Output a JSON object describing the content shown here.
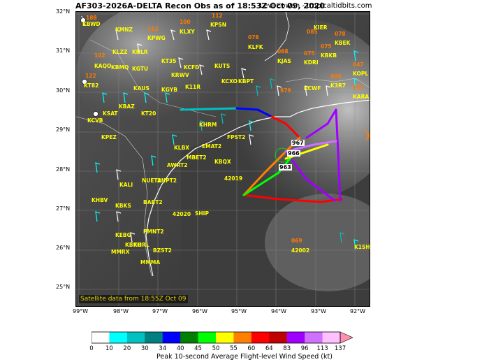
{
  "title": "AF303-2026A-DELTA Recon Obs as of 18:53Z Oct 09, 2020",
  "credit": "Levi Cowan - tropicaltidbits.com",
  "satellite_note": "Satellite data from 18:55Z Oct 09",
  "lat_labels": [
    "32°N",
    "31°N",
    "30°N",
    "29°N",
    "28°N",
    "27°N",
    "26°N",
    "25°N"
  ],
  "lon_labels": [
    "99°W",
    "98°W",
    "97°W",
    "96°W",
    "95°W",
    "94°W",
    "93°W",
    "92°W"
  ],
  "pressure_labels": [
    "967",
    "966",
    "963"
  ],
  "colorbar": {
    "title": "Peak 10-second Average Flight-level Wind Speed (kt)",
    "ticks": [
      "0",
      "10",
      "20",
      "30",
      "34",
      "40",
      "45",
      "50",
      "55",
      "60",
      "64",
      "83",
      "96",
      "113",
      "137"
    ],
    "colors": [
      "#ffffff",
      "#00ffff",
      "#00c0c0",
      "#008080",
      "#0000ff",
      "#008000",
      "#00ff00",
      "#ffff00",
      "#ff8000",
      "#ff0000",
      "#c00000",
      "#a000ff",
      "#d070ff",
      "#ffc0ff",
      "#ff90b0"
    ]
  },
  "stations": [
    {
      "id": "KBWD",
      "obs": "188",
      "color": "#ff7a00"
    },
    {
      "id": "KMNZ",
      "obs": "",
      "color": ""
    },
    {
      "id": "KPWG",
      "obs": "162",
      "color": "#ff7a00"
    },
    {
      "id": "KLXY",
      "obs": "100",
      "color": "#ff7a00"
    },
    {
      "id": "KPSN",
      "obs": "112",
      "color": "#ff7a00"
    },
    {
      "id": "KLFK",
      "obs": "078",
      "color": "#ff7a00"
    },
    {
      "id": "KJAS",
      "obs": "068",
      "color": "#ff7a00"
    },
    {
      "id": "KDRI",
      "obs": "075",
      "color": "#ff7a00"
    },
    {
      "id": "KBKB",
      "obs": "075",
      "color": "#ff7a00"
    },
    {
      "id": "KIER",
      "obs": "085",
      "color": "#ff7a00"
    },
    {
      "id": "KBEK",
      "obs": "078",
      "color": "#ff7a00"
    },
    {
      "id": "KLZZ",
      "obs": "",
      "color": ""
    },
    {
      "id": "KHLR",
      "obs": "",
      "color": ""
    },
    {
      "id": "KAQO",
      "obs": "102",
      "color": "#ff7a00"
    },
    {
      "id": "KBMQ",
      "obs": "",
      "color": ""
    },
    {
      "id": "KGTU",
      "obs": "",
      "color": ""
    },
    {
      "id": "KT35",
      "obs": "",
      "color": ""
    },
    {
      "id": "KCFD",
      "obs": "",
      "color": ""
    },
    {
      "id": "KUTS",
      "obs": "",
      "color": ""
    },
    {
      "id": "KRWV",
      "obs": "",
      "color": ""
    },
    {
      "id": "KT82",
      "obs": "122",
      "color": "#ff7a00"
    },
    {
      "id": "KAUS",
      "obs": "",
      "color": ""
    },
    {
      "id": "KGYB",
      "obs": "",
      "color": ""
    },
    {
      "id": "K11R",
      "obs": "",
      "color": ""
    },
    {
      "id": "KCXO",
      "obs": "",
      "color": ""
    },
    {
      "id": "KBPT",
      "obs": "",
      "color": ""
    },
    {
      "id": "KJAS2",
      "obs": "979",
      "color": "#ff7a00"
    },
    {
      "id": "KCWF",
      "obs": "",
      "color": ""
    },
    {
      "id": "K3R7",
      "obs": "000",
      "color": "#ff7a00"
    },
    {
      "id": "KOPL",
      "obs": "047",
      "color": "#ff7a00"
    },
    {
      "id": "KARA",
      "obs": "997",
      "color": "#ff7a00"
    },
    {
      "id": "KSAT",
      "obs": "",
      "color": ""
    },
    {
      "id": "KCVB",
      "obs": "",
      "color": ""
    },
    {
      "id": "KBAZ",
      "obs": "",
      "color": ""
    },
    {
      "id": "KT20",
      "obs": "",
      "color": ""
    },
    {
      "id": "KPEZ",
      "obs": "",
      "color": ""
    },
    {
      "id": "KHRM",
      "obs": "",
      "color": ""
    },
    {
      "id": "KLBX",
      "obs": "",
      "color": ""
    },
    {
      "id": "MBET2",
      "obs": "",
      "color": ""
    },
    {
      "id": "AWRT2",
      "obs": "",
      "color": ""
    },
    {
      "id": "KBQX",
      "obs": "",
      "color": ""
    },
    {
      "id": "FPST2",
      "obs": "",
      "color": ""
    },
    {
      "id": "EMAT2",
      "obs": "",
      "color": ""
    },
    {
      "id": "NUET2",
      "obs": "",
      "color": ""
    },
    {
      "id": "ANPT2",
      "obs": "",
      "color": ""
    },
    {
      "id": "KALI",
      "obs": "",
      "color": ""
    },
    {
      "id": "KHBV",
      "obs": "",
      "color": ""
    },
    {
      "id": "KBKS",
      "obs": "",
      "color": ""
    },
    {
      "id": "BABT2",
      "obs": "",
      "color": ""
    },
    {
      "id": "42020",
      "obs": "",
      "color": ""
    },
    {
      "id": "SHIP",
      "obs": "",
      "color": ""
    },
    {
      "id": "42019",
      "obs": "",
      "color": ""
    },
    {
      "id": "KEBG",
      "obs": "",
      "color": ""
    },
    {
      "id": "PMNT2",
      "obs": "",
      "color": ""
    },
    {
      "id": "KHRL",
      "obs": "",
      "color": ""
    },
    {
      "id": "KBRO",
      "obs": "",
      "color": ""
    },
    {
      "id": "BZST2",
      "obs": "",
      "color": ""
    },
    {
      "id": "MMRX",
      "obs": "",
      "color": ""
    },
    {
      "id": "MMMA",
      "obs": "",
      "color": ""
    },
    {
      "id": "42002",
      "obs": "069",
      "color": "#ff7a00"
    },
    {
      "id": "K1SH",
      "obs": "",
      "color": ""
    }
  ]
}
